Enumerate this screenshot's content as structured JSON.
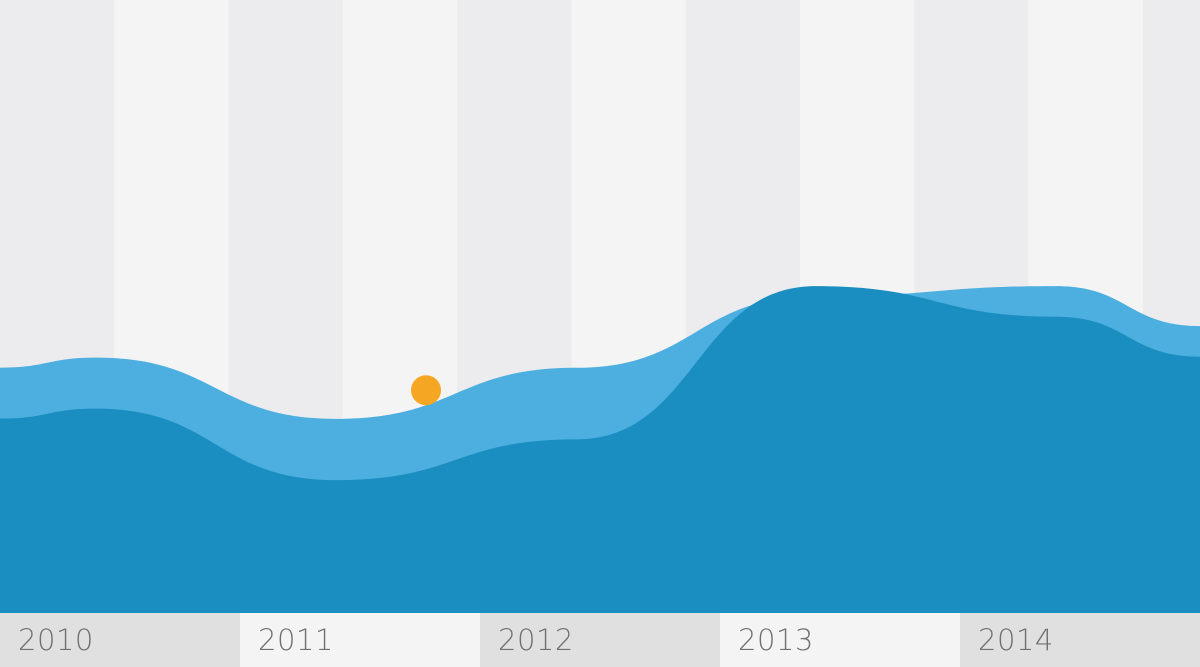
{
  "chart_data": {
    "type": "area",
    "x": [
      "2010",
      "2011",
      "2012",
      "2013",
      "2014"
    ],
    "xlabel": "",
    "ylabel": "",
    "series": [
      {
        "values": [
          2.5,
          1.9,
          2.4,
          3.1,
          3.2
        ],
        "color": "#4daee0"
      },
      {
        "values": [
          2.0,
          1.3,
          1.7,
          3.2,
          2.9
        ],
        "color": "#1a8ec0"
      }
    ],
    "highlight_point": {
      "x": "2011.5",
      "y": 2.2,
      "color": "#f5a623"
    },
    "grid": true,
    "legend": "none"
  },
  "colors": {
    "band_dark": "#ececee",
    "band_light": "#f4f4f4",
    "axis_dark": "#e0e0e0",
    "axis_light": "#f4f4f4",
    "axis_text": "#707072"
  }
}
